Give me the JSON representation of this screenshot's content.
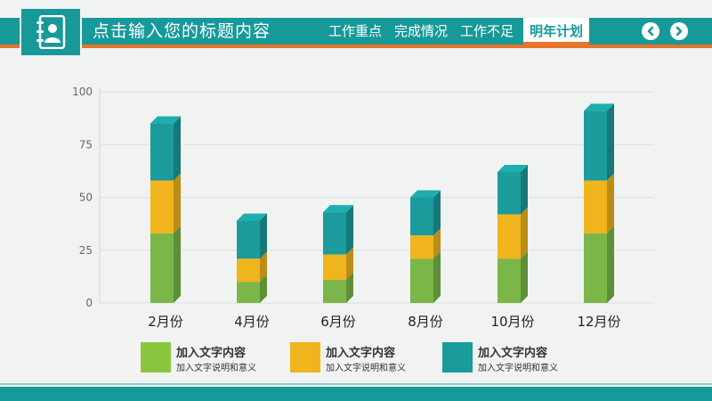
{
  "header": {
    "title": "点击输入您的标题内容",
    "nav_items": [
      {
        "label": "工作重点",
        "active": false
      },
      {
        "label": "完成情况",
        "active": false
      },
      {
        "label": "工作不足",
        "active": false
      },
      {
        "label": "明年计划",
        "active": true
      }
    ],
    "prev_icon": "chevron-left-icon",
    "next_icon": "chevron-right-icon",
    "logo_icon": "contact-book-icon"
  },
  "colors": {
    "teal": "#17999a",
    "orange_accent": "#e8732a",
    "green": "#7ab648",
    "yellow": "#f0b41c",
    "dark_teal": "#1b9b9c"
  },
  "chart_data": {
    "type": "bar",
    "stacked": true,
    "three_d": true,
    "categories": [
      "2月份",
      "4月份",
      "6月份",
      "8月份",
      "10月份",
      "12月份"
    ],
    "ylim": [
      0,
      100
    ],
    "yticks": [
      "0",
      "25",
      "50",
      "75",
      "100"
    ],
    "grid": true,
    "series": [
      {
        "name": "加入文字内容",
        "color": "#7ab648",
        "values": [
          33,
          10,
          11,
          21,
          21,
          33
        ]
      },
      {
        "name": "加入文字内容",
        "color": "#f0b41c",
        "values": [
          25,
          11,
          12,
          11,
          21,
          25
        ]
      },
      {
        "name": "加入文字内容",
        "color": "#1b9b9c",
        "values": [
          27,
          18,
          20,
          18,
          20,
          33
        ]
      }
    ],
    "legend": [
      {
        "title": "加入文字内容",
        "subtitle": "加入文字说明和意义"
      },
      {
        "title": "加入文字内容",
        "subtitle": "加入文字说明和意义"
      },
      {
        "title": "加入文字内容",
        "subtitle": "加入文字说明和意义"
      }
    ],
    "legend_position": "bottom"
  }
}
